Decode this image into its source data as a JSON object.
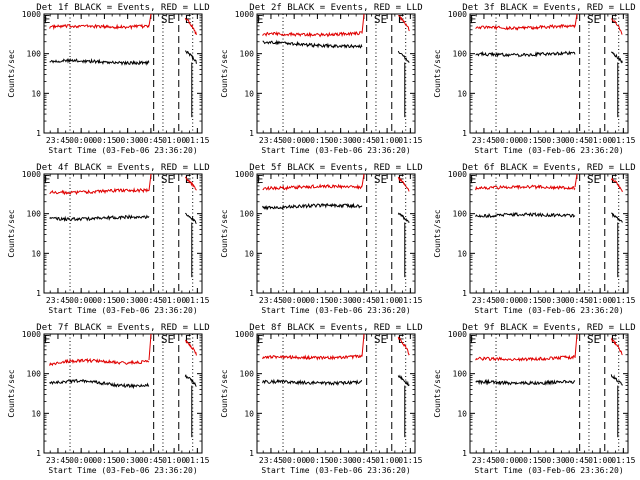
{
  "common": {
    "ylabel": "Counts/sec",
    "xlabel": "Start Time (03-Feb-06 23:36:20)",
    "xticks": [
      "23:45",
      "00:00",
      "00:15",
      "00:30",
      "00:45",
      "01:00",
      "01:15"
    ],
    "yticks": [
      "1",
      "10",
      "100",
      "1000"
    ],
    "markers": [
      "E",
      "SE",
      "E"
    ],
    "colors": {
      "events": "#000000",
      "lld": "#e00000"
    }
  },
  "chart_data": [
    {
      "type": "line",
      "title": "Det 1f BLACK = Events, RED = LLD",
      "ylim": [
        1,
        1000
      ],
      "yscale": "log",
      "series": [
        {
          "color": "#e00000",
          "level": 470,
          "end": 500,
          "after": [
            800,
            300
          ]
        },
        {
          "color": "#000000",
          "level": 65,
          "end": 60,
          "after": [
            120,
            60
          ]
        }
      ]
    },
    {
      "type": "line",
      "title": "Det 2f BLACK = Events, RED = LLD",
      "ylim": [
        1,
        1000
      ],
      "yscale": "log",
      "series": [
        {
          "color": "#e00000",
          "level": 300,
          "end": 320,
          "after": [
            900,
            400
          ]
        },
        {
          "color": "#000000",
          "level": 190,
          "end": 150,
          "after": [
            110,
            60
          ]
        }
      ]
    },
    {
      "type": "line",
      "title": "Det 3f BLACK = Events, RED = LLD",
      "ylim": [
        1,
        1000
      ],
      "yscale": "log",
      "series": [
        {
          "color": "#e00000",
          "level": 450,
          "end": 480,
          "after": [
            800,
            300
          ]
        },
        {
          "color": "#000000",
          "level": 95,
          "end": 100,
          "after": [
            110,
            60
          ]
        }
      ]
    },
    {
      "type": "line",
      "title": "Det 4f BLACK = Events, RED = LLD",
      "ylim": [
        1,
        1000
      ],
      "yscale": "log",
      "series": [
        {
          "color": "#e00000",
          "level": 350,
          "end": 380,
          "after": [
            800,
            400
          ]
        },
        {
          "color": "#000000",
          "level": 75,
          "end": 80,
          "after": [
            100,
            60
          ]
        }
      ]
    },
    {
      "type": "line",
      "title": "Det 5f BLACK = Events, RED = LLD",
      "ylim": [
        1,
        1000
      ],
      "yscale": "log",
      "series": [
        {
          "color": "#e00000",
          "level": 460,
          "end": 480,
          "after": [
            800,
            350
          ]
        },
        {
          "color": "#000000",
          "level": 150,
          "end": 160,
          "after": [
            100,
            60
          ]
        }
      ]
    },
    {
      "type": "line",
      "title": "Det 6f BLACK = Events, RED = LLD",
      "ylim": [
        1,
        1000
      ],
      "yscale": "log",
      "series": [
        {
          "color": "#e00000",
          "level": 450,
          "end": 470,
          "after": [
            800,
            350
          ]
        },
        {
          "color": "#000000",
          "level": 90,
          "end": 95,
          "after": [
            100,
            60
          ]
        }
      ]
    },
    {
      "type": "line",
      "title": "Det 7f BLACK = Events, RED = LLD",
      "ylim": [
        1,
        1000
      ],
      "yscale": "log",
      "series": [
        {
          "color": "#e00000",
          "level": 180,
          "end": 220,
          "after": [
            700,
            300
          ]
        },
        {
          "color": "#000000",
          "level": 60,
          "end": 55,
          "after": [
            90,
            50
          ]
        }
      ]
    },
    {
      "type": "line",
      "title": "Det 8f BLACK = Events, RED = LLD",
      "ylim": [
        1,
        1000
      ],
      "yscale": "log",
      "series": [
        {
          "color": "#e00000",
          "level": 250,
          "end": 270,
          "after": [
            800,
            300
          ]
        },
        {
          "color": "#000000",
          "level": 60,
          "end": 60,
          "after": [
            90,
            50
          ]
        }
      ]
    },
    {
      "type": "line",
      "title": "Det 9f BLACK = Events, RED = LLD",
      "ylim": [
        1,
        1000
      ],
      "yscale": "log",
      "series": [
        {
          "color": "#e00000",
          "level": 230,
          "end": 250,
          "after": [
            750,
            300
          ]
        },
        {
          "color": "#000000",
          "level": 60,
          "end": 60,
          "after": [
            90,
            50
          ]
        }
      ]
    }
  ]
}
